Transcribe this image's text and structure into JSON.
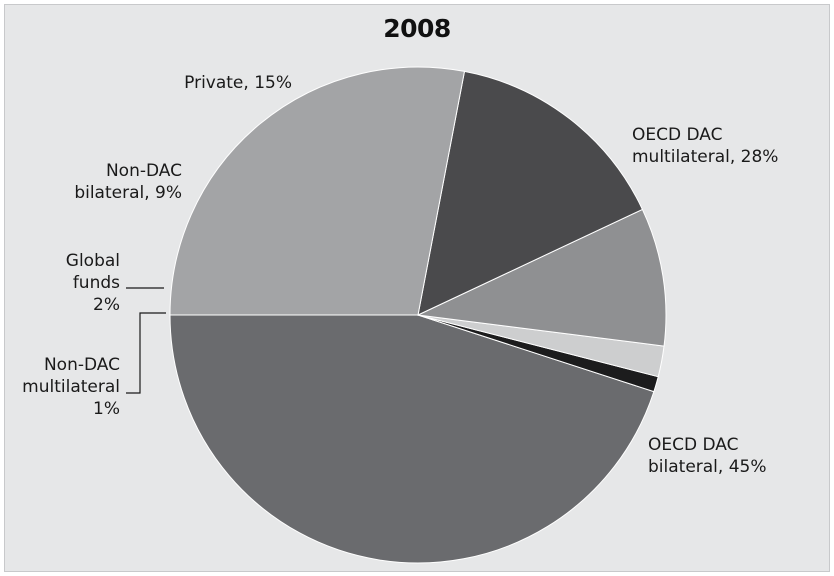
{
  "chart_data": {
    "type": "pie",
    "title": "2008",
    "slices": [
      {
        "key": "oecd-dac-bilateral",
        "value": 45,
        "color": "#6a6b6e",
        "label_lines": [
          "OECD DAC",
          "bilateral, 45%"
        ]
      },
      {
        "key": "non-dac-multilateral",
        "value": 1,
        "color": "#1c1c1d",
        "label_lines": [
          "Non-DAC",
          "multilateral",
          "1%"
        ]
      },
      {
        "key": "global-funds",
        "value": 2,
        "color": "#cdcecf",
        "label_lines": [
          "Global",
          "funds",
          "2%"
        ]
      },
      {
        "key": "non-dac-bilateral",
        "value": 9,
        "color": "#8f9092",
        "label_lines": [
          "Non-DAC",
          "bilateral, 9%"
        ]
      },
      {
        "key": "private",
        "value": 15,
        "color": "#4a4a4c",
        "label_lines": [
          "Private, 15%"
        ]
      },
      {
        "key": "oecd-dac-multilateral",
        "value": 28,
        "color": "#a3a4a6",
        "label_lines": [
          "OECD DAC",
          "multilateral, 28%"
        ]
      }
    ]
  }
}
